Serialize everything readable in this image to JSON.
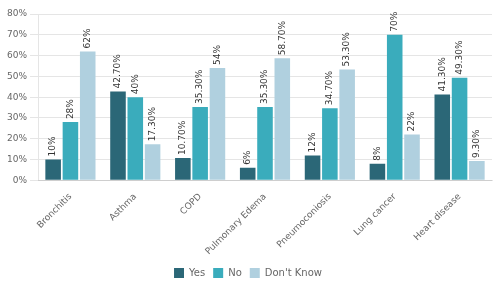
{
  "chart_data": {
    "type": "bar",
    "categories": [
      "Bronchitis",
      "Asthma",
      "COPD",
      "Pulmonary Edema",
      "Pneumoconiosis",
      "Lung cancer",
      "Heart disease"
    ],
    "series": [
      {
        "name": "Yes",
        "color": "#2b6777",
        "values": [
          10,
          42.7,
          10.7,
          6,
          12,
          8,
          41.3
        ],
        "value_labels": [
          "10%",
          "42.70%",
          "10.70%",
          "6%",
          "12%",
          "8%",
          "41.30%"
        ]
      },
      {
        "name": "No",
        "color": "#3aacbc",
        "values": [
          28,
          40,
          35.3,
          35.3,
          34.7,
          70,
          49.3
        ],
        "value_labels": [
          "28%",
          "40%",
          "35.30%",
          "35.30%",
          "34.70%",
          "70%",
          "49.30%"
        ]
      },
      {
        "name": "Don't Know",
        "color": "#b0d0df",
        "values": [
          62,
          17.3,
          54,
          58.7,
          53.3,
          22,
          9.3
        ],
        "value_labels": [
          "62%",
          "17.30%",
          "54%",
          "58.70%",
          "53.30%",
          "22%",
          "9.30%"
        ]
      }
    ],
    "ylim": [
      0,
      80
    ],
    "yticks": [
      {
        "value": 0,
        "label": "0%"
      },
      {
        "value": 10,
        "label": "10%"
      },
      {
        "value": 20,
        "label": "20%"
      },
      {
        "value": 30,
        "label": "30%"
      },
      {
        "value": 40,
        "label": "40%"
      },
      {
        "value": 50,
        "label": "50%"
      },
      {
        "value": 60,
        "label": "60%"
      },
      {
        "value": 70,
        "label": "70%"
      },
      {
        "value": 80,
        "label": "80%"
      }
    ],
    "grid": true,
    "legend": "bottom",
    "data_labels": true
  }
}
